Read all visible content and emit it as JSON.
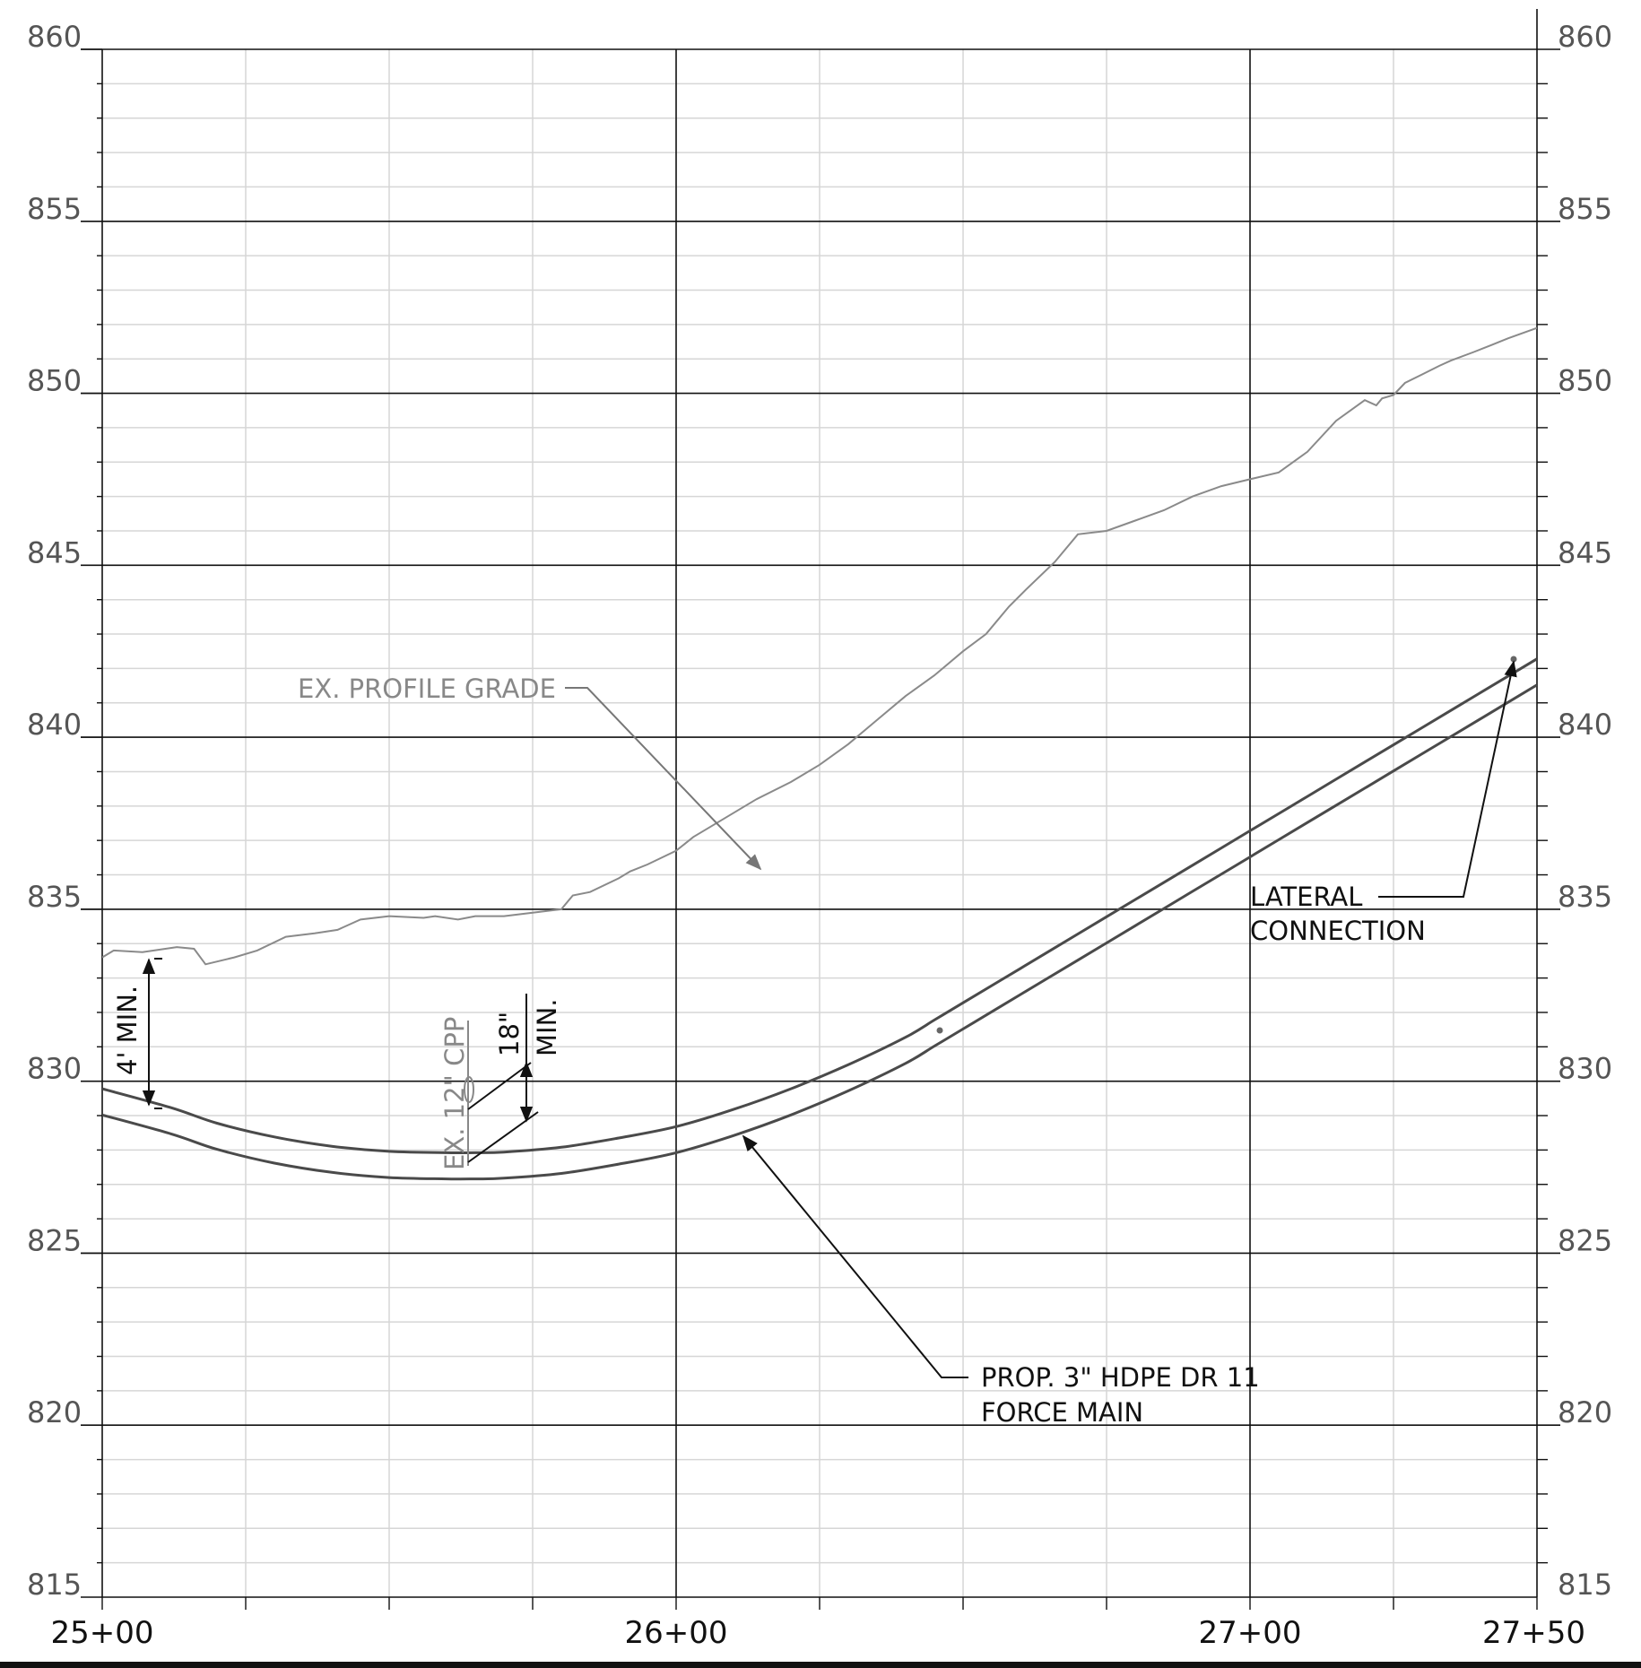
{
  "chart_data": {
    "type": "line",
    "xlim": [
      2500,
      2750
    ],
    "ylim": [
      815,
      860
    ],
    "elevation_ticks": [
      860,
      855,
      850,
      845,
      840,
      835,
      830,
      825,
      820,
      815
    ],
    "elevation_labels": [
      "860",
      "855",
      "850",
      "845",
      "840",
      "835",
      "830",
      "825",
      "820",
      "815"
    ],
    "station_ticks": [
      2500,
      2600,
      2700,
      2750
    ],
    "station_labels": [
      "25+00",
      "26+00",
      "27+00",
      "27+50"
    ],
    "minor_station_step": 25,
    "minor_elevation_step": 1,
    "grid": true,
    "ground_profile": {
      "x": [
        2500,
        2502,
        2507,
        2513,
        2516,
        2518,
        2523,
        2527,
        2532,
        2537,
        2541,
        2545,
        2550,
        2556,
        2558,
        2562,
        2565,
        2570,
        2575,
        2580,
        2582,
        2585,
        2590,
        2592,
        2595,
        2600,
        2603,
        2605,
        2608,
        2611,
        2614,
        2620,
        2625,
        2630,
        2635,
        2640,
        2645,
        2650,
        2654,
        2656,
        2658,
        2661,
        2666,
        2670,
        2675,
        2680,
        2685,
        2690,
        2695,
        2700,
        2705,
        2710,
        2715,
        2720,
        2722,
        2723,
        2725,
        2727,
        2730,
        2733,
        2735,
        2739,
        2742,
        2745,
        2750
      ],
      "y": [
        833.6,
        833.8,
        833.75,
        833.9,
        833.85,
        833.4,
        833.6,
        833.8,
        834.2,
        834.3,
        834.4,
        834.7,
        834.8,
        834.75,
        834.8,
        834.7,
        834.8,
        834.8,
        834.9,
        835.0,
        835.4,
        835.5,
        835.9,
        836.1,
        836.3,
        836.7,
        837.1,
        837.3,
        837.6,
        837.9,
        838.2,
        838.7,
        839.2,
        839.8,
        840.5,
        841.2,
        841.8,
        842.5,
        843.0,
        843.4,
        843.8,
        844.3,
        845.1,
        845.9,
        846.0,
        846.3,
        846.6,
        847.0,
        847.3,
        847.5,
        847.7,
        848.3,
        849.2,
        849.8,
        849.65,
        849.85,
        849.95,
        850.3,
        850.55,
        850.8,
        850.95,
        851.2,
        851.4,
        851.6,
        851.9
      ]
    },
    "force_main": {
      "x": [
        2500,
        2512,
        2520,
        2530,
        2540,
        2550,
        2560,
        2565,
        2570,
        2580,
        2590,
        2600,
        2610,
        2620,
        2630,
        2640,
        2645,
        2650,
        2660,
        2670,
        2680,
        2690,
        2700,
        2710,
        2720,
        2730,
        2740,
        2750
      ],
      "y": [
        829.4,
        828.85,
        828.4,
        828.0,
        827.73,
        827.58,
        827.54,
        827.54,
        827.56,
        827.7,
        827.97,
        828.3,
        828.8,
        829.4,
        830.1,
        830.9,
        831.4,
        831.9,
        832.9,
        833.9,
        834.9,
        835.9,
        836.9,
        837.9,
        838.9,
        839.9,
        840.9,
        841.9
      ]
    },
    "force_main_wall_offset": 0.38
  },
  "labels": {
    "ex_profile_grade": "EX. PROFILE GRADE",
    "min_cover": "4' MIN.",
    "ex_culvert": "EX. 12\" CPP",
    "separation_value": "18\"",
    "separation_min": "MIN.",
    "lateral_line1": "LATERAL",
    "lateral_line2": "CONNECTION",
    "force_main_line1": "PROP. 3\" HDPE DR 11",
    "force_main_line2": "FORCE MAIN"
  }
}
